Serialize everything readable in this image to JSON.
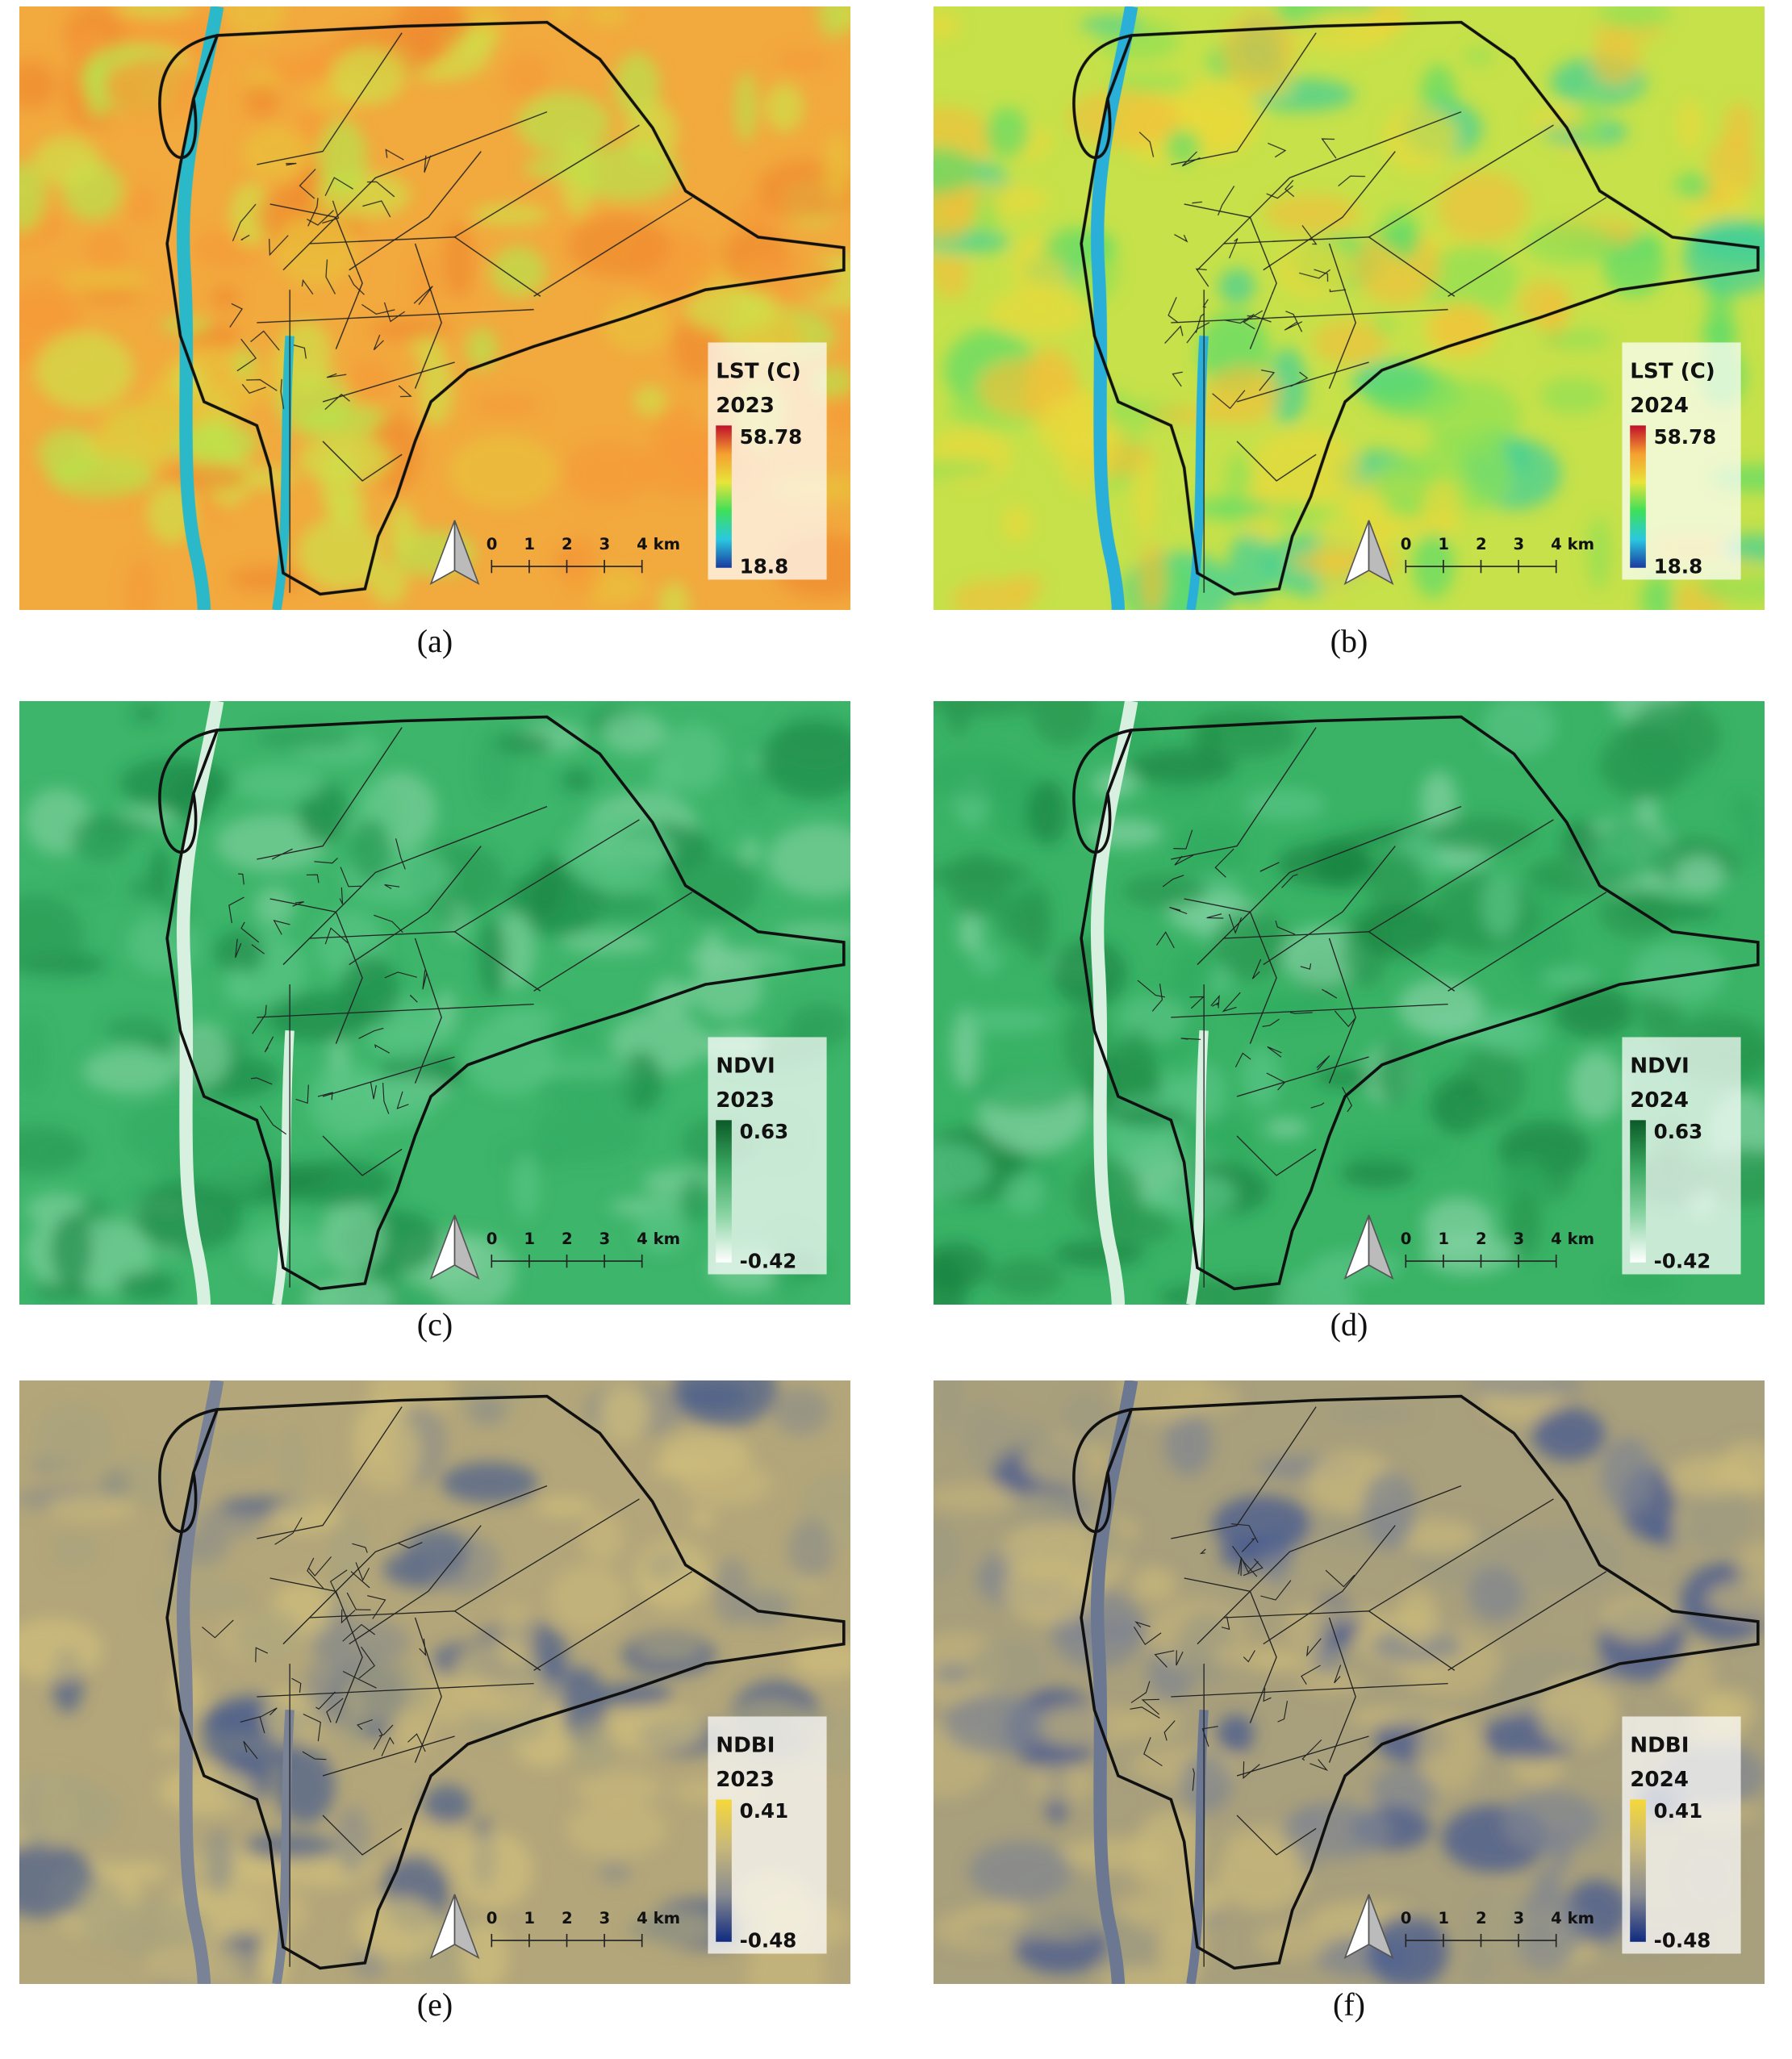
{
  "figure": {
    "scale_labels": [
      "0",
      "1",
      "2",
      "3",
      "4 km"
    ],
    "panels": [
      {
        "caption": "(a)",
        "legend_title": "LST (C)",
        "year": "2023",
        "max": 58.78,
        "min": 18.8,
        "background": "#f2a93e",
        "texture_colors": [
          "#f59a38",
          "#e8c23a",
          "#cfe04a",
          "#f08a30",
          "#b8e24c"
        ],
        "river_color": "#2bb8c8",
        "gradient": [
          "#c0102a",
          "#f5a030",
          "#e8e43a",
          "#3ee05a",
          "#2ac8e0",
          "#1a3aa0"
        ]
      },
      {
        "caption": "(b)",
        "legend_title": "LST (C)",
        "year": "2024",
        "max": 58.78,
        "min": 18.8,
        "background": "#c6e14a",
        "texture_colors": [
          "#8fe055",
          "#e8d83c",
          "#5ddc6a",
          "#f0c03a",
          "#3ccf9a"
        ],
        "river_color": "#2ab0d8",
        "gradient": [
          "#c0102a",
          "#f5a030",
          "#e8e43a",
          "#3ee05a",
          "#2ac8e0",
          "#1a3aa0"
        ]
      },
      {
        "caption": "(c)",
        "legend_title": "NDVI",
        "year": "2023",
        "max": 0.63,
        "min": -0.42,
        "background": "#3db56a",
        "texture_colors": [
          "#2a9a55",
          "#58c484",
          "#1f8a48",
          "#7ccf9a",
          "#34ad62"
        ],
        "river_color": "#d8f0e0",
        "gradient": [
          "#0b5a28",
          "#3aa860",
          "#8ad4a4",
          "#ffffff"
        ]
      },
      {
        "caption": "(d)",
        "legend_title": "NDVI",
        "year": "2024",
        "max": 0.63,
        "min": -0.42,
        "background": "#3ab366",
        "texture_colors": [
          "#26964f",
          "#5ac486",
          "#1a8442",
          "#84d2a2",
          "#30a95e"
        ],
        "river_color": "#d8f0e0",
        "gradient": [
          "#0b5a28",
          "#3aa860",
          "#8ad4a4",
          "#ffffff"
        ]
      },
      {
        "caption": "(e)",
        "legend_title": "NDBI",
        "year": "2023",
        "max": 0.41,
        "min": -0.48,
        "background": "#b3a67a",
        "texture_colors": [
          "#8e8f88",
          "#c8b67a",
          "#4a5e8c",
          "#a8a27e",
          "#d0bf7c"
        ],
        "river_color": "#7a8296",
        "gradient": [
          "#f5d83a",
          "#c8b87a",
          "#8a8c90",
          "#102a80"
        ]
      },
      {
        "caption": "(f)",
        "legend_title": "NDBI",
        "year": "2024",
        "max": 0.41,
        "min": -0.48,
        "background": "#a89f7c",
        "texture_colors": [
          "#7f8590",
          "#c2b27a",
          "#3e5690",
          "#9e9a80",
          "#cab97a"
        ],
        "river_color": "#6c7892",
        "gradient": [
          "#f5d83a",
          "#c8b87a",
          "#8a8c90",
          "#102a80"
        ]
      }
    ]
  }
}
